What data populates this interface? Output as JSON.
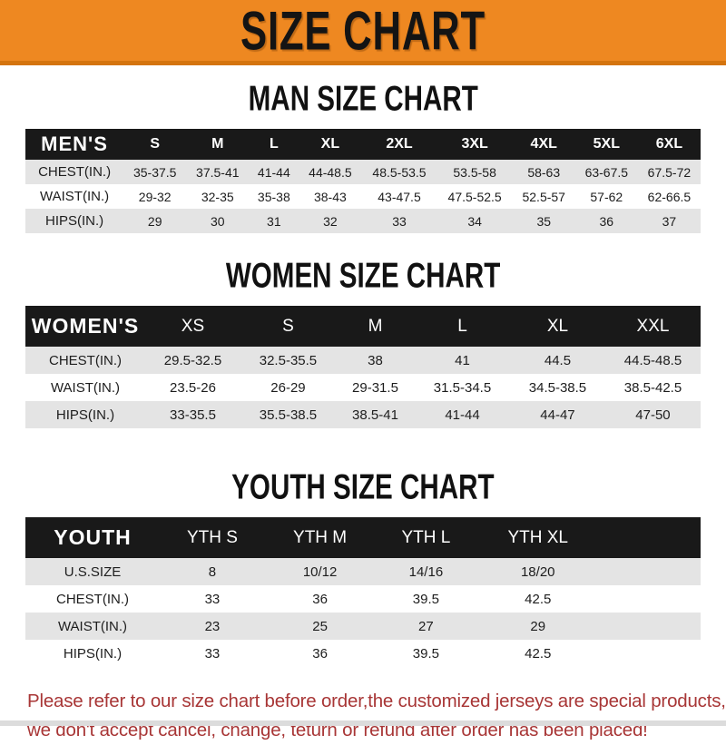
{
  "banner": {
    "title": "SIZE CHART"
  },
  "colors": {
    "banner-bg": "#ee8821",
    "banner-edge": "#d4740e",
    "bar-bg": "#191919",
    "bar-text": "#ffffff",
    "row-alt": "#e4e4e4",
    "note-red": "#a83636",
    "text-dark": "#1d1d1d"
  },
  "sections": [
    {
      "id": "man",
      "title": "MAN SIZE CHART",
      "header_label": "MEN'S",
      "columns": [
        "S",
        "M",
        "L",
        "XL",
        "2XL",
        "3XL",
        "4XL",
        "5XL",
        "6XL"
      ],
      "rows": [
        {
          "label": "CHEST(IN.)",
          "values": [
            "35-37.5",
            "37.5-41",
            "41-44",
            "44-48.5",
            "48.5-53.5",
            "53.5-58",
            "58-63",
            "63-67.5",
            "67.5-72"
          ]
        },
        {
          "label": "WAIST(IN.)",
          "values": [
            "29-32",
            "32-35",
            "35-38",
            "38-43",
            "43-47.5",
            "47.5-52.5",
            "52.5-57",
            "57-62",
            "62-66.5"
          ]
        },
        {
          "label": "HIPS(IN.)",
          "values": [
            "29",
            "30",
            "31",
            "32",
            "33",
            "34",
            "35",
            "36",
            "37"
          ]
        }
      ],
      "spacer": false
    },
    {
      "id": "women",
      "title": "WOMEN SIZE CHART",
      "header_label": "WOMEN'S",
      "columns": [
        "XS",
        "S",
        "M",
        "L",
        "XL",
        "XXL"
      ],
      "rows": [
        {
          "label": "CHEST(IN.)",
          "values": [
            "29.5-32.5",
            "32.5-35.5",
            "38",
            "41",
            "44.5",
            "44.5-48.5"
          ]
        },
        {
          "label": "WAIST(IN.)",
          "values": [
            "23.5-26",
            "26-29",
            "29-31.5",
            "31.5-34.5",
            "34.5-38.5",
            "38.5-42.5"
          ]
        },
        {
          "label": "HIPS(IN.)",
          "values": [
            "33-35.5",
            "35.5-38.5",
            "38.5-41",
            "41-44",
            "44-47",
            "47-50"
          ]
        }
      ],
      "spacer": false
    },
    {
      "id": "youth",
      "title": "YOUTH SIZE CHART",
      "header_label": "YOUTH",
      "columns": [
        "YTH S",
        "YTH M",
        "YTH L",
        "YTH XL"
      ],
      "rows": [
        {
          "label": "U.S.SIZE",
          "values": [
            "8",
            "10/12",
            "14/16",
            "18/20"
          ]
        },
        {
          "label": "CHEST(IN.)",
          "values": [
            "33",
            "36",
            "39.5",
            "42.5"
          ]
        },
        {
          "label": "WAIST(IN.)",
          "values": [
            "23",
            "25",
            "27",
            "29"
          ]
        },
        {
          "label": "HIPS(IN.)",
          "values": [
            "33",
            "36",
            "39.5",
            "42.5"
          ]
        }
      ],
      "spacer": true
    }
  ],
  "footer": {
    "line1": "Please refer to our size chart before order,the customized jerseys are special products,",
    "line2": "we don't accept cancel, change, teturn or refund after order has been placed!"
  }
}
